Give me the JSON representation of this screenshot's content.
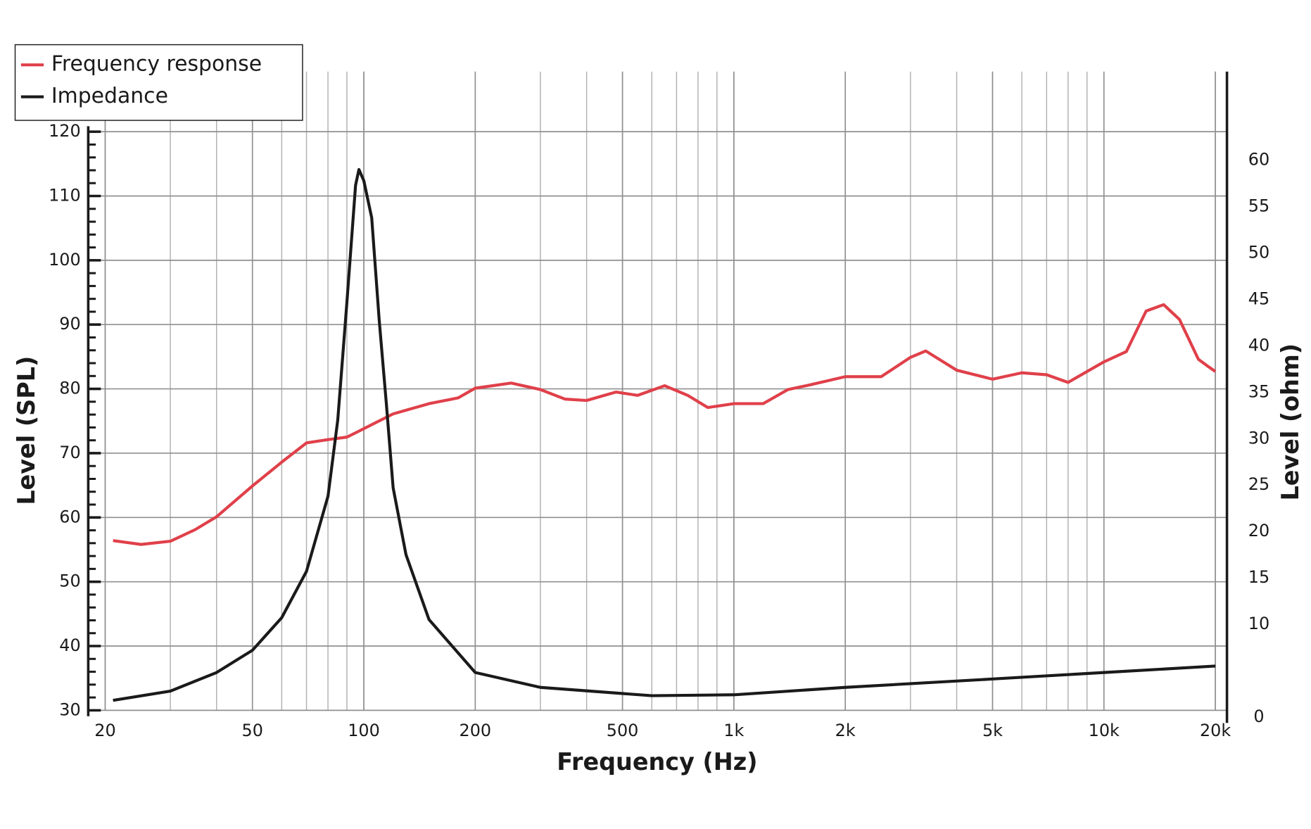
{
  "chart_data": {
    "type": "line",
    "x_label": "Frequency (Hz)",
    "y_label": "Level (SPL)",
    "y2_label": "Level (ohm)",
    "log_x": true,
    "grid": true,
    "minor_grid": true,
    "legend": "top-left",
    "xlim": [
      18,
      21500
    ],
    "ylim": [
      30,
      130
    ],
    "y2lim": [
      0,
      70
    ],
    "xticks": [
      20,
      50,
      100,
      200,
      500,
      {
        "value": 1000,
        "label": "1k"
      },
      {
        "value": 2000,
        "label": "2k"
      },
      {
        "value": 5000,
        "label": "5k"
      },
      {
        "value": 10000,
        "label": "10k"
      },
      {
        "value": 20000,
        "label": "20k"
      }
    ],
    "yticks": [
      30,
      40,
      50,
      60,
      70,
      80,
      90,
      100,
      110,
      120
    ],
    "y2ticks": [
      0,
      10,
      15,
      20,
      25,
      30,
      35,
      40,
      45,
      50,
      55,
      60
    ],
    "series": [
      {
        "name": "Frequency response",
        "color": "#e0404a",
        "x": [
          21,
          25,
          30,
          35,
          40,
          50,
          60,
          70,
          80,
          90,
          100,
          120,
          150,
          180,
          200,
          250,
          300,
          350,
          400,
          480,
          550,
          650,
          750,
          850,
          1000,
          1200,
          1400,
          1600,
          2000,
          2500,
          3000,
          3300,
          4000,
          5000,
          6000,
          7000,
          8000,
          10000,
          11500,
          13000,
          14500,
          16000,
          18000,
          19000,
          20000
        ],
        "values": [
          56.4,
          55.8,
          56.3,
          58.1,
          60.1,
          64.9,
          68.6,
          71.6,
          72.1,
          72.5,
          73.8,
          76.1,
          77.7,
          78.6,
          80.1,
          80.9,
          79.9,
          78.4,
          78.2,
          79.5,
          79.0,
          80.5,
          79.0,
          77.1,
          77.7,
          77.7,
          79.9,
          80.6,
          81.9,
          81.9,
          84.9,
          85.9,
          82.9,
          81.5,
          82.5,
          82.2,
          81.0,
          84.2,
          85.8,
          92.1,
          93.1,
          90.8,
          84.6,
          83.6,
          82.7
        ]
      },
      {
        "name": "Impedance",
        "color": "#1a1a1a",
        "axis": "y2",
        "x": [
          21,
          30,
          40,
          50,
          60,
          70,
          80,
          85,
          90,
          95,
          97,
          100,
          105,
          110,
          115,
          120,
          130,
          150,
          200,
          300,
          600,
          1000,
          2000,
          5000,
          10000,
          20000
        ],
        "values": [
          1.8,
          2.8,
          4.8,
          7.2,
          10.7,
          15.7,
          23.8,
          32.0,
          44.7,
          57.3,
          59.0,
          57.8,
          53.8,
          42.8,
          33.8,
          24.7,
          17.5,
          10.5,
          4.8,
          3.2,
          2.3,
          2.4,
          3.2,
          4.1,
          4.8,
          5.5
        ]
      }
    ]
  }
}
